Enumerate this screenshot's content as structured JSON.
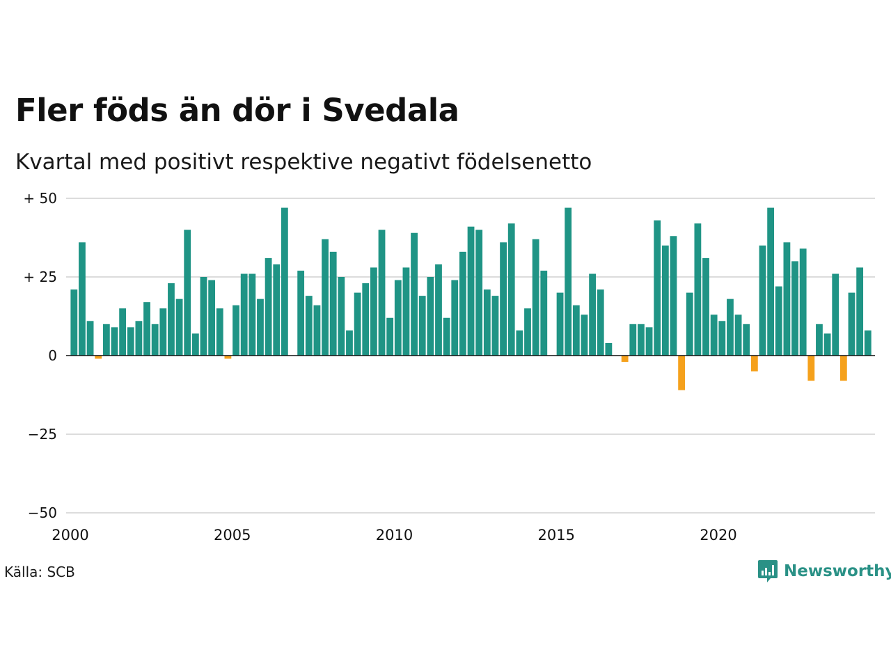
{
  "title": "Fler föds än dör i Svedala",
  "subtitle": "Kvartal med positivt respektive negativt födelsenetto",
  "source": "Källa: SCB",
  "brand": {
    "name": "Newsworthy",
    "icon": "newsworthy-logo-icon",
    "color": "#2a9186"
  },
  "colors": {
    "positive": "#1f9485",
    "negative": "#f5a11c",
    "grid": "#dcdcdc",
    "zero": "#111111"
  },
  "chart_data": {
    "type": "bar",
    "title": "Fler föds än dör i Svedala",
    "subtitle": "Kvartal med positivt respektive negativt födelsenetto",
    "xlabel": "",
    "ylabel": "",
    "ylim": [
      -50,
      50
    ],
    "yticks": [
      50,
      25,
      0,
      -25,
      -50
    ],
    "ytick_labels": [
      "+ 50",
      "+ 25",
      "0",
      "−25",
      "−50"
    ],
    "xlim": [
      2000,
      2024.75
    ],
    "xticks": [
      2000,
      2005,
      2010,
      2015,
      2020
    ],
    "xtick_labels": [
      "2000",
      "2005",
      "2010",
      "2015",
      "2020"
    ],
    "grid": "horizontal",
    "start_year": 2000,
    "start_quarter": 1,
    "values": [
      21,
      36,
      11,
      -1,
      10,
      9,
      15,
      9,
      11,
      17,
      10,
      15,
      23,
      18,
      40,
      7,
      25,
      24,
      15,
      -1,
      16,
      26,
      26,
      18,
      31,
      29,
      47,
      0,
      27,
      19,
      16,
      37,
      33,
      25,
      8,
      20,
      23,
      28,
      40,
      12,
      24,
      28,
      39,
      19,
      25,
      29,
      12,
      24,
      33,
      41,
      40,
      21,
      19,
      36,
      42,
      8,
      15,
      37,
      27,
      0,
      20,
      47,
      16,
      13,
      26,
      21,
      4,
      0,
      -2,
      10,
      10,
      9,
      43,
      35,
      38,
      -11,
      20,
      42,
      31,
      13,
      11,
      18,
      13,
      10,
      -5,
      35,
      47,
      22,
      36,
      30,
      34,
      -8,
      10,
      7,
      26,
      -8,
      20,
      28,
      8
    ]
  }
}
